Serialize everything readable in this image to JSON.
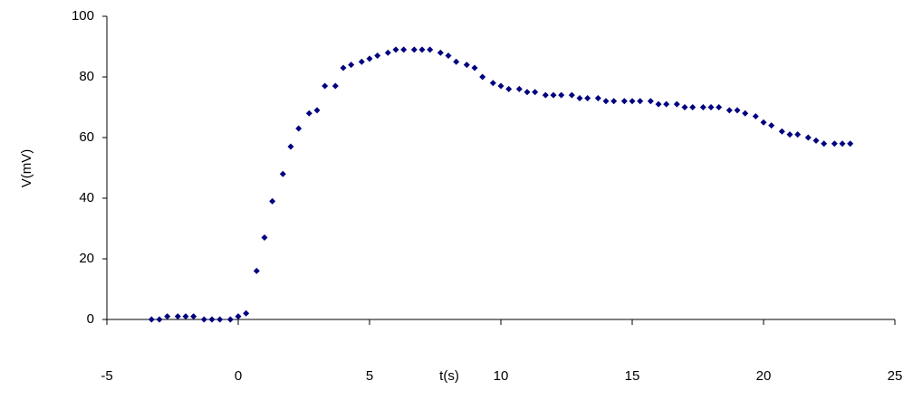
{
  "chart_data": {
    "type": "scatter",
    "xlabel": "t(s)",
    "ylabel": "V(mV)",
    "xlim": [
      -5,
      25
    ],
    "xticks": [
      -5,
      0,
      5,
      10,
      15,
      20,
      25
    ],
    "ylim": [
      0,
      100
    ],
    "yticks": [
      0,
      20,
      40,
      60,
      80,
      100
    ],
    "grid": false,
    "series": [
      {
        "color": "#000080",
        "x": [
          -3.3,
          -3.0,
          -2.7,
          -2.3,
          -2.0,
          -1.7,
          -1.3,
          -1.0,
          -0.7,
          -0.3,
          0.0,
          0.3,
          0.7,
          1.0,
          1.3,
          1.7,
          2.0,
          2.3,
          2.7,
          3.0,
          3.3,
          3.7,
          4.0,
          4.3,
          4.7,
          5.0,
          5.3,
          5.7,
          6.0,
          6.3,
          6.7,
          7.0,
          7.3,
          7.7,
          8.0,
          8.3,
          8.7,
          9.0,
          9.3,
          9.7,
          10.0,
          10.3,
          10.7,
          11.0,
          11.3,
          11.7,
          12.0,
          12.3,
          12.7,
          13.0,
          13.3,
          13.7,
          14.0,
          14.3,
          14.7,
          15.0,
          15.3,
          15.7,
          16.0,
          16.3,
          16.7,
          17.0,
          17.3,
          17.7,
          18.0,
          18.3,
          18.7,
          19.0,
          19.3,
          19.7,
          20.0,
          20.3,
          20.7,
          21.0,
          21.3,
          21.7,
          22.0,
          22.3,
          22.7,
          23.0,
          23.3
        ],
        "values": [
          0,
          0,
          1,
          1,
          1,
          1,
          0,
          0,
          0,
          0,
          1,
          2,
          16,
          27,
          39,
          48,
          57,
          63,
          68,
          69,
          77,
          77,
          83,
          84,
          85,
          86,
          87,
          88,
          89,
          89,
          89,
          89,
          89,
          88,
          87,
          85,
          84,
          83,
          80,
          78,
          77,
          76,
          76,
          75,
          75,
          74,
          74,
          74,
          74,
          73,
          73,
          73,
          72,
          72,
          72,
          72,
          72,
          72,
          71,
          71,
          71,
          70,
          70,
          70,
          70,
          70,
          69,
          69,
          68,
          67,
          65,
          64,
          62,
          61,
          61,
          60,
          59,
          58,
          58,
          58,
          58
        ]
      }
    ]
  }
}
